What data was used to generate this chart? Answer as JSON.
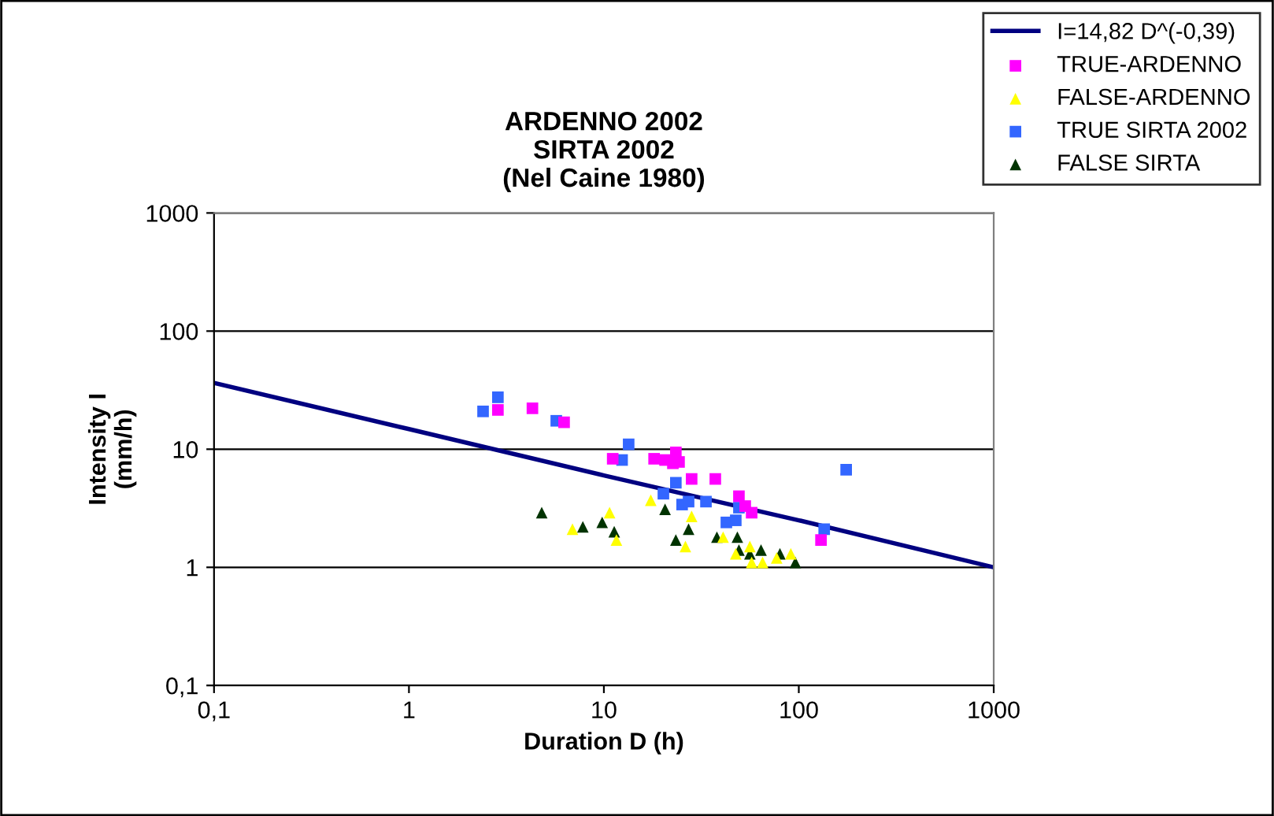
{
  "chart_data": {
    "type": "scatter",
    "title": "ARDENNO 2002\nSIRTA 2002\n(Nel Caine 1980)",
    "xlabel": "Duration D (h)",
    "ylabel": "Intensity I\n(mm/h)",
    "log": "xy",
    "grid": "y",
    "legend": "top right",
    "xlim": [
      0.1,
      1000
    ],
    "ylim": [
      0.1,
      1000
    ],
    "xticks": [
      {
        "value": 0.1,
        "label": "0,1"
      },
      1,
      10,
      100,
      1000
    ],
    "yticks": [
      {
        "value": 0.1,
        "label": "0,1"
      },
      1,
      10,
      100,
      1000
    ],
    "series": [
      {
        "name": "I=14,82 D^(-0,39)",
        "type": "line",
        "color": "#000080",
        "marker": "none",
        "x": [
          0.1,
          1,
          10,
          100,
          1000
        ],
        "values": [
          36.4,
          14.8,
          6.0,
          2.5,
          1.0
        ]
      },
      {
        "name": "TRUE-ARDENNO",
        "color": "#ff00ff",
        "marker": "square",
        "x": [
          2.86,
          4.3,
          6.25,
          11.1,
          18.1,
          20.6,
          22.6,
          23.4,
          24.3,
          28.2,
          37.3,
          49.3,
          53.1,
          57.3,
          130
        ],
        "values": [
          21.5,
          22.2,
          16.9,
          8.3,
          8.3,
          8.1,
          7.6,
          9.4,
          7.8,
          5.6,
          5.6,
          4.0,
          3.3,
          2.9,
          1.7
        ]
      },
      {
        "name": "FALSE-ARDENNO",
        "color": "#ffff00",
        "marker": "triangle",
        "x": [
          6.9,
          10.7,
          11.6,
          17.4,
          28.2,
          26.2,
          40.9,
          47.5,
          56.1,
          57.3,
          65.2,
          91,
          77
        ],
        "values": [
          2.1,
          2.9,
          1.7,
          3.7,
          2.7,
          1.5,
          1.8,
          1.3,
          1.5,
          1.1,
          1.1,
          1.3,
          1.2
        ]
      },
      {
        "name": "TRUE SIRTA 2002",
        "color": "#3366ff",
        "marker": "square",
        "x": [
          2.4,
          2.86,
          5.7,
          13.4,
          12.4,
          23.4,
          20.2,
          25.2,
          27.2,
          33.4,
          49.3,
          42.5,
          47.5,
          175,
          135
        ],
        "values": [
          20.9,
          27.5,
          17.4,
          11,
          8.1,
          5.2,
          4.2,
          3.4,
          3.6,
          3.6,
          3.2,
          2.4,
          2.5,
          6.7,
          2.1
        ]
      },
      {
        "name": "FALSE SIRTA",
        "color": "#003300",
        "marker": "triangle",
        "x": [
          4.8,
          7.8,
          9.8,
          11.3,
          20.6,
          27.2,
          23.4,
          38,
          48.4,
          49.3,
          56.1,
          64,
          80,
          96
        ],
        "values": [
          2.9,
          2.2,
          2.4,
          2.0,
          3.1,
          2.1,
          1.7,
          1.8,
          1.8,
          1.4,
          1.3,
          1.4,
          1.3,
          1.1
        ]
      }
    ]
  }
}
